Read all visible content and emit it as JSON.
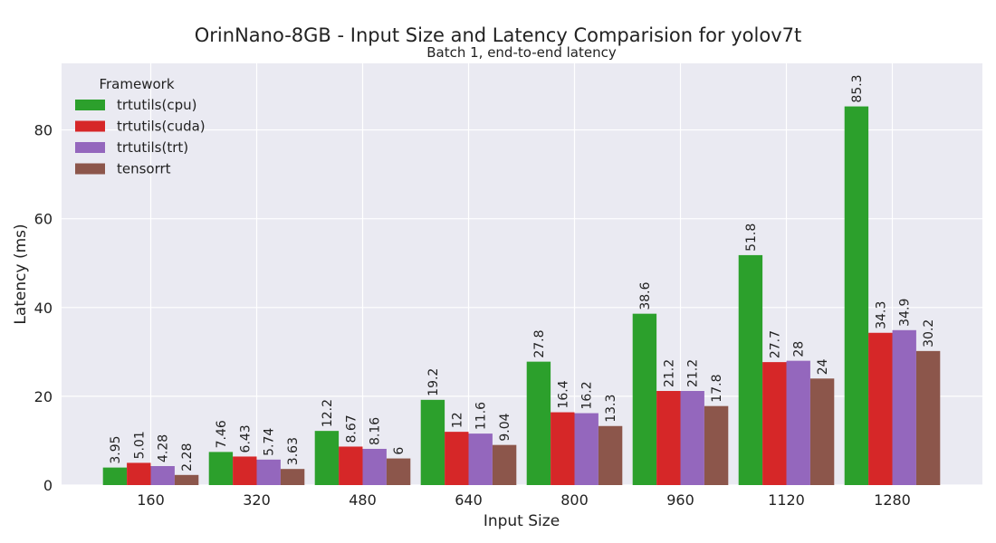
{
  "chart_data": {
    "type": "bar",
    "title": "OrinNano-8GB - Input Size and Latency Comparision for yolov7t",
    "subtitle": "Batch 1, end-to-end latency",
    "xlabel": "Input Size",
    "ylabel": "Latency (ms)",
    "categories": [
      "160",
      "320",
      "480",
      "640",
      "800",
      "960",
      "1120",
      "1280"
    ],
    "ylim": [
      0,
      95
    ],
    "yticks": [
      0,
      20,
      40,
      60,
      80
    ],
    "grid": true,
    "legend": {
      "title": "Framework",
      "placement": "top-left"
    },
    "series": [
      {
        "name": "trtutils(cpu)",
        "color": "#2ca02c",
        "values": [
          3.95,
          7.46,
          12.2,
          19.2,
          27.8,
          38.6,
          51.8,
          85.3
        ]
      },
      {
        "name": "trtutils(cuda)",
        "color": "#d62728",
        "values": [
          5.01,
          6.43,
          8.67,
          12,
          16.4,
          21.2,
          27.7,
          34.3
        ]
      },
      {
        "name": "trtutils(trt)",
        "color": "#9467bd",
        "values": [
          4.28,
          5.74,
          8.16,
          11.6,
          16.2,
          21.2,
          28,
          34.9
        ]
      },
      {
        "name": "tensorrt",
        "color": "#8c564b",
        "values": [
          2.28,
          3.63,
          6,
          9.04,
          13.3,
          17.8,
          24,
          30.2
        ]
      }
    ]
  }
}
